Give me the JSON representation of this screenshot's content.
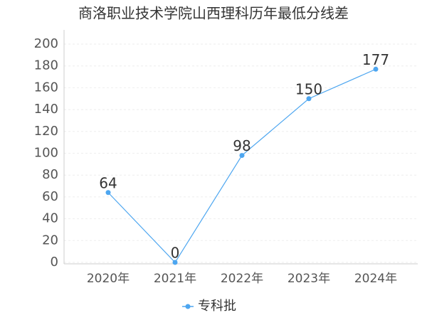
{
  "chart_data": {
    "type": "line",
    "title": "商洛职业技术学院山西理科历年最低分线差",
    "categories": [
      "2020年",
      "2021年",
      "2022年",
      "2023年",
      "2024年"
    ],
    "series": [
      {
        "name": "专科批",
        "color": "#4da6f0",
        "values": [
          64,
          0,
          98,
          150,
          177
        ]
      }
    ],
    "ylim": [
      0,
      200
    ],
    "yticks": [
      0,
      20,
      40,
      60,
      80,
      100,
      120,
      140,
      160,
      180,
      200
    ],
    "grid": true,
    "legend": "bottom"
  }
}
